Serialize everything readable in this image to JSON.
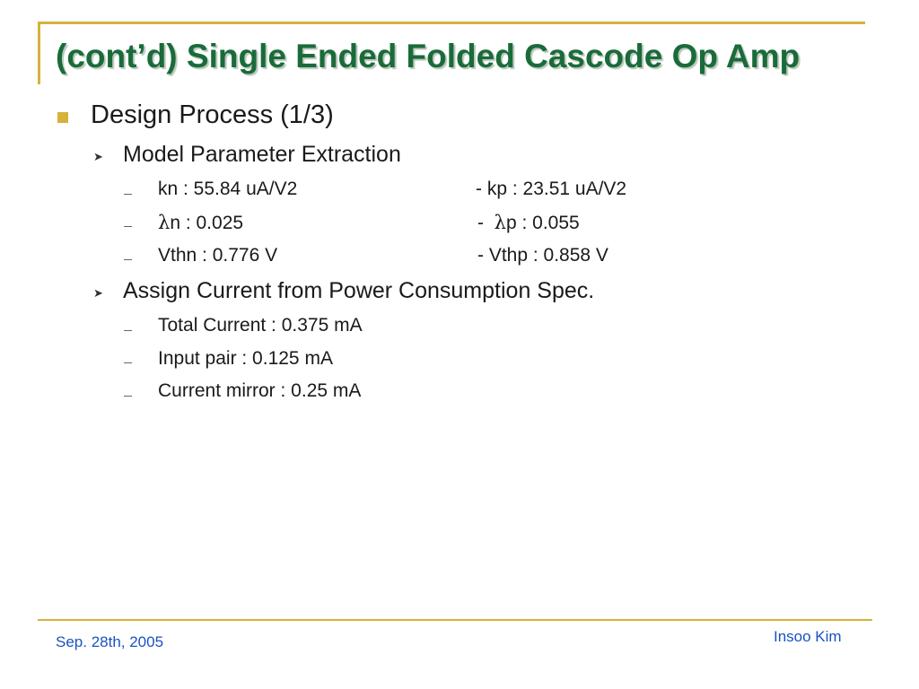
{
  "slide": {
    "title": "(cont’d) Single Ended Folded Cascode Op Amp",
    "level1": {
      "text": "Design Process (1/3)"
    },
    "section1": {
      "heading": "Model Parameter Extraction",
      "rows": [
        {
          "left": "kn : 55.84 uA/V2",
          "right": "-  kp : 23.51 uA/V2"
        },
        {
          "left_symbol": "λ",
          "left": "n : 0.025",
          "right_prefix": "-  ",
          "right_symbol": "λ",
          "right": "p : 0.055"
        },
        {
          "left": "Vthn : 0.776 V",
          "right": "- Vthp : 0.858 V"
        }
      ]
    },
    "section2": {
      "heading": "Assign Current from Power Consumption Spec.",
      "items": [
        "Total Current : 0.375 mA",
        "Input pair : 0.125 mA",
        "Current mirror : 0.25 mA"
      ]
    },
    "footer": {
      "date": "Sep. 28th, 2005",
      "author": "Insoo Kim"
    },
    "colors": {
      "title": "#1a6b3a",
      "accent": "#d6b23a",
      "footer_text": "#1a52c2"
    },
    "icons": {
      "level1_bullet": "square-bullet-icon",
      "level2_bullet": "arrowhead-bullet-icon",
      "level3_bullet": "dash-bullet-icon"
    }
  }
}
